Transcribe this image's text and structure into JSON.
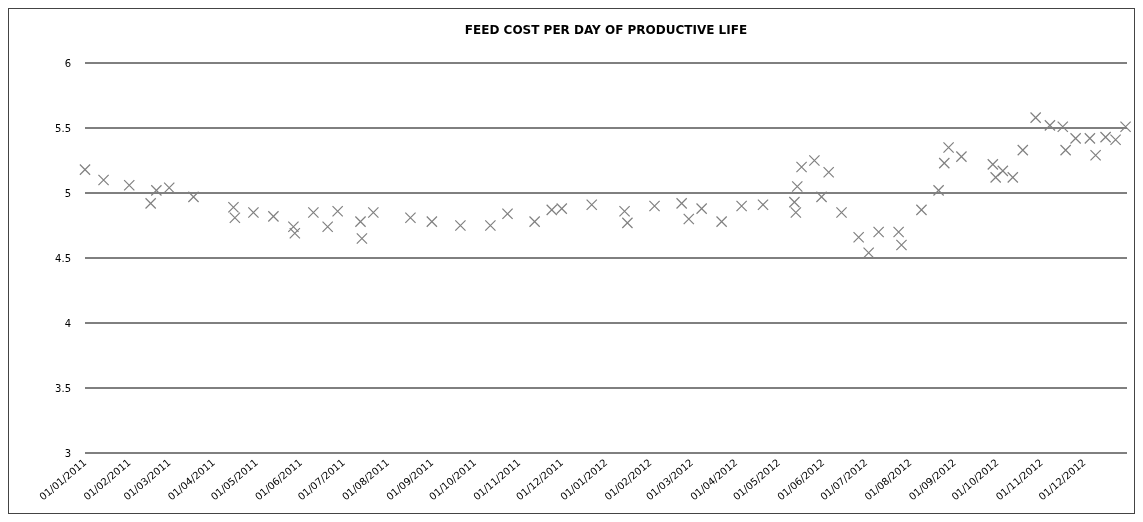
{
  "chart_data": {
    "type": "scatter",
    "title": "FEED COST PER DAY OF PRODUCTIVE LIFE",
    "marker": "cross",
    "grid": "y",
    "x": [
      "2011-01-01",
      "2011-01-14",
      "2011-02-01",
      "2011-02-16",
      "2011-02-20",
      "2011-03-01",
      "2011-03-18",
      "2011-04-15",
      "2011-04-16",
      "2011-04-29",
      "2011-05-13",
      "2011-05-27",
      "2011-05-28",
      "2011-06-10",
      "2011-06-20",
      "2011-06-27",
      "2011-07-13",
      "2011-07-14",
      "2011-07-22",
      "2011-08-17",
      "2011-09-01",
      "2011-09-21",
      "2011-10-12",
      "2011-10-24",
      "2011-11-12",
      "2011-11-24",
      "2011-12-01",
      "2011-12-22",
      "2012-01-14",
      "2012-01-16",
      "2012-02-04",
      "2012-02-23",
      "2012-02-28",
      "2012-03-08",
      "2012-03-22",
      "2012-04-05",
      "2012-04-20",
      "2012-05-12",
      "2012-05-13",
      "2012-05-14",
      "2012-05-17",
      "2012-05-26",
      "2012-05-31",
      "2012-06-05",
      "2012-06-14",
      "2012-06-26",
      "2012-07-03",
      "2012-07-10",
      "2012-07-24",
      "2012-07-26",
      "2012-08-09",
      "2012-08-21",
      "2012-08-25",
      "2012-08-28",
      "2012-09-06",
      "2012-09-28",
      "2012-09-30",
      "2012-10-05",
      "2012-10-12",
      "2012-10-19",
      "2012-10-28",
      "2012-11-07",
      "2012-11-16",
      "2012-11-18",
      "2012-11-25",
      "2012-12-05",
      "2012-12-09",
      "2012-12-16",
      "2012-12-23",
      "2012-12-30"
    ],
    "series": [
      {
        "color": "#808080",
        "values": [
          5.18,
          5.1,
          5.06,
          4.92,
          5.02,
          5.04,
          4.97,
          4.89,
          4.81,
          4.85,
          4.82,
          4.74,
          4.69,
          4.85,
          4.74,
          4.86,
          4.78,
          4.65,
          4.85,
          4.81,
          4.78,
          4.75,
          4.75,
          4.84,
          4.78,
          4.87,
          4.88,
          4.91,
          4.86,
          4.77,
          4.9,
          4.92,
          4.8,
          4.88,
          4.78,
          4.9,
          4.91,
          4.93,
          4.85,
          5.05,
          5.2,
          5.25,
          4.97,
          5.16,
          4.85,
          4.66,
          4.54,
          4.7,
          4.7,
          4.6,
          4.87,
          5.02,
          5.23,
          5.35,
          5.28,
          5.22,
          5.12,
          5.17,
          5.12,
          5.33,
          5.58,
          5.52,
          5.51,
          5.33,
          5.42,
          5.42,
          5.29,
          5.43,
          5.41,
          5.51
        ]
      }
    ],
    "xlim": [
      "2011-01-01",
      "2012-12-31"
    ],
    "xticks": [
      {
        "value": "2011-01-01",
        "label": "01/01/2011"
      },
      {
        "value": "2011-02-01",
        "label": "01/02/2011"
      },
      {
        "value": "2011-03-01",
        "label": "01/03/2011"
      },
      {
        "value": "2011-04-01",
        "label": "01/04/2011"
      },
      {
        "value": "2011-05-01",
        "label": "01/05/2011"
      },
      {
        "value": "2011-06-01",
        "label": "01/06/2011"
      },
      {
        "value": "2011-07-01",
        "label": "01/07/2011"
      },
      {
        "value": "2011-08-01",
        "label": "01/08/2011"
      },
      {
        "value": "2011-09-01",
        "label": "01/09/2011"
      },
      {
        "value": "2011-10-01",
        "label": "01/10/2011"
      },
      {
        "value": "2011-11-01",
        "label": "01/11/2011"
      },
      {
        "value": "2011-12-01",
        "label": "01/12/2011"
      },
      {
        "value": "2012-01-01",
        "label": "01/01/2012"
      },
      {
        "value": "2012-02-01",
        "label": "01/02/2012"
      },
      {
        "value": "2012-03-01",
        "label": "01/03/2012"
      },
      {
        "value": "2012-04-01",
        "label": "01/04/2012"
      },
      {
        "value": "2012-05-01",
        "label": "01/05/2012"
      },
      {
        "value": "2012-06-01",
        "label": "01/06/2012"
      },
      {
        "value": "2012-07-01",
        "label": "01/07/2012"
      },
      {
        "value": "2012-08-01",
        "label": "01/08/2012"
      },
      {
        "value": "2012-09-01",
        "label": "01/09/2012"
      },
      {
        "value": "2012-10-01",
        "label": "01/10/2012"
      },
      {
        "value": "2012-11-01",
        "label": "01/11/2012"
      },
      {
        "value": "2012-12-01",
        "label": "01/12/2012"
      }
    ],
    "ylim": [
      3,
      6
    ],
    "yticks": [
      3,
      3.5,
      4,
      4.5,
      5,
      5.5,
      6
    ]
  }
}
